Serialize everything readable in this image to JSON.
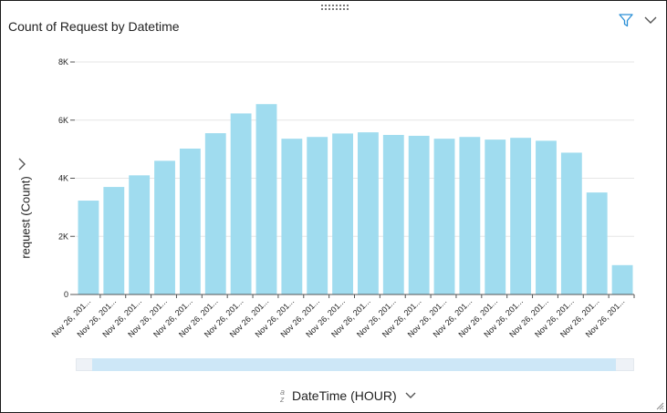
{
  "title": "Count of Request by Datetime",
  "icons": {
    "filter": "filter-icon",
    "menu": "chevron-down-icon",
    "expand": "chevron-right-icon",
    "sort": "sort-az-icon"
  },
  "chart_data": {
    "type": "bar",
    "title": "Count of Request by Datetime",
    "ylabel": "request (Count)",
    "xlabel": "DateTime (HOUR)",
    "ylim": [
      0,
      8000
    ],
    "yticks": [
      {
        "value": 0,
        "label": "0"
      },
      {
        "value": 2000,
        "label": "2K"
      },
      {
        "value": 4000,
        "label": "4K"
      },
      {
        "value": 6000,
        "label": "6K"
      },
      {
        "value": 8000,
        "label": "8K"
      }
    ],
    "grid": true,
    "color": "#a0dcef",
    "categories": [
      "Nov 26, 201...",
      "Nov 26, 201...",
      "Nov 26, 201...",
      "Nov 26, 201...",
      "Nov 26, 201...",
      "Nov 26, 201...",
      "Nov 26, 201...",
      "Nov 26, 201...",
      "Nov 26, 201...",
      "Nov 26, 201...",
      "Nov 26, 201...",
      "Nov 26, 201...",
      "Nov 26, 201...",
      "Nov 26, 201...",
      "Nov 26, 201...",
      "Nov 26, 201...",
      "Nov 26, 201...",
      "Nov 26, 201...",
      "Nov 26, 201...",
      "Nov 26, 201...",
      "Nov 26, 201...",
      "Nov 26, 201..."
    ],
    "values": [
      3230,
      3700,
      4100,
      4600,
      5020,
      5550,
      6230,
      6550,
      5360,
      5420,
      5540,
      5580,
      5490,
      5460,
      5360,
      5420,
      5330,
      5390,
      5290,
      4880,
      3510,
      1010
    ]
  }
}
